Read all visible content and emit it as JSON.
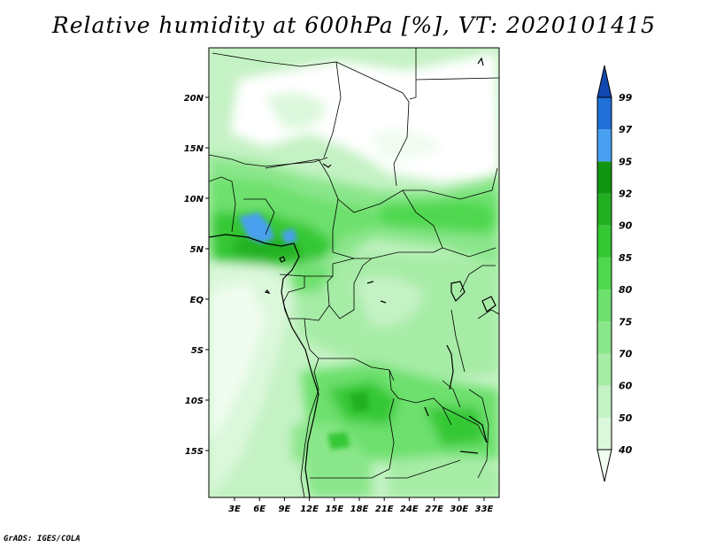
{
  "title": "Relative humidity at 600hPa [%], VT: 2020101415",
  "credit": "GrADS: IGES/COLA",
  "lat_labels": [
    "20N",
    "15N",
    "10N",
    "5N",
    "EQ",
    "5S",
    "10S",
    "15S"
  ],
  "lon_labels": [
    "3E",
    "6E",
    "9E",
    "12E",
    "15E",
    "18E",
    "21E",
    "24E",
    "27E",
    "30E",
    "33E"
  ],
  "colorbar": {
    "levels": [
      "40",
      "50",
      "60",
      "70",
      "75",
      "80",
      "85",
      "90",
      "92",
      "95",
      "97",
      "99"
    ],
    "colors": [
      "#f0fcf0",
      "#dcf8dc",
      "#c4f2c4",
      "#a6eca6",
      "#8ae68a",
      "#6de06d",
      "#4fd84f",
      "#34c834",
      "#22b022",
      "#129612",
      "#4aa0f0",
      "#2070d8",
      "#1048b0"
    ]
  }
}
